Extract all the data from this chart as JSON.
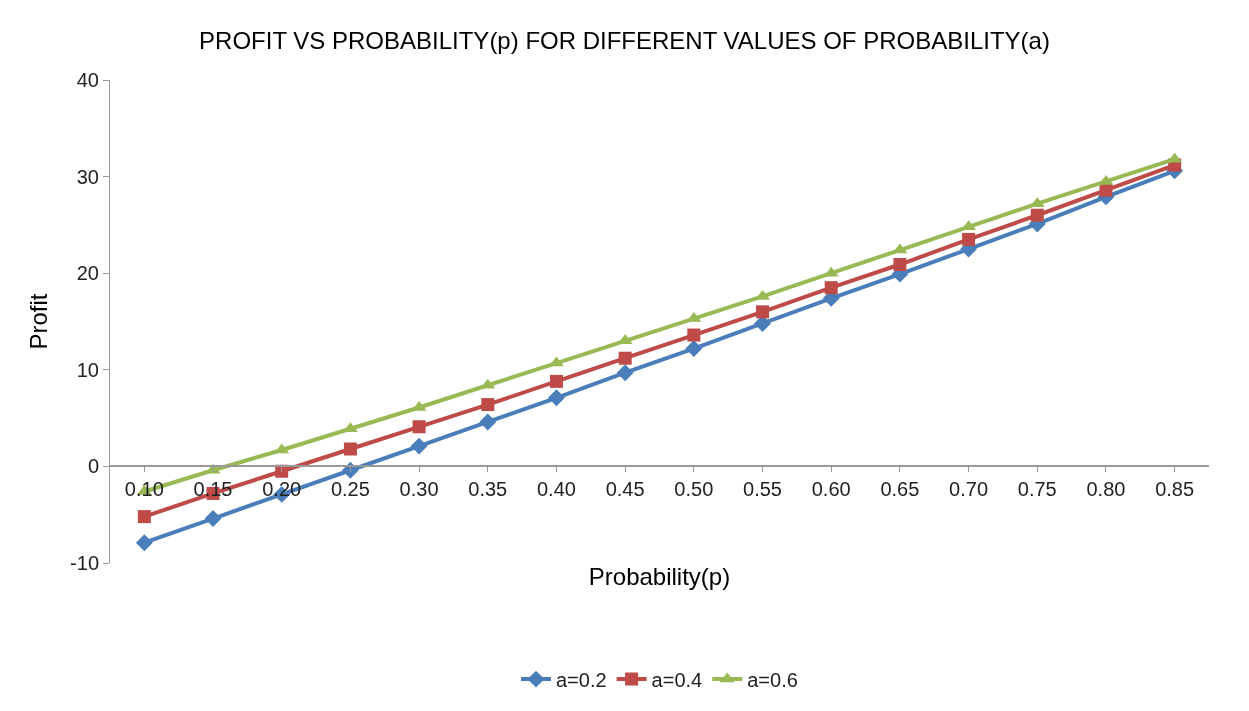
{
  "chart_data": {
    "type": "line",
    "title": "PROFIT VS PROBABILITY(p) FOR DIFFERENT VALUES OF PROBABILITY(a)",
    "xlabel": "Probability(p)",
    "ylabel": "Profit",
    "categories": [
      "0.10",
      "0.15",
      "0.20",
      "0.25",
      "0.30",
      "0.35",
      "0.40",
      "0.45",
      "0.50",
      "0.55",
      "0.60",
      "0.65",
      "0.70",
      "0.75",
      "0.80",
      "0.85"
    ],
    "series": [
      {
        "name": "a=0.2",
        "color": "#4a7ebb",
        "marker": "diamond",
        "values": [
          -7.9,
          -5.4,
          -2.9,
          -0.4,
          2.1,
          4.6,
          7.1,
          9.7,
          12.2,
          14.8,
          17.4,
          19.9,
          22.5,
          25.1,
          27.9,
          30.6
        ]
      },
      {
        "name": "a=0.4",
        "color": "#be4b48",
        "marker": "square",
        "values": [
          -5.2,
          -2.8,
          -0.5,
          1.8,
          4.1,
          6.4,
          8.8,
          11.2,
          13.6,
          16.0,
          18.5,
          20.9,
          23.5,
          26.0,
          28.6,
          31.2
        ]
      },
      {
        "name": "a=0.6",
        "color": "#98b954",
        "marker": "triangle",
        "values": [
          -2.6,
          -0.4,
          1.7,
          3.9,
          6.1,
          8.4,
          10.7,
          13.0,
          15.3,
          17.6,
          20.0,
          22.4,
          24.8,
          27.2,
          29.5,
          31.8
        ]
      }
    ],
    "ylim": [
      -10,
      40
    ],
    "yticks": [
      -10,
      0,
      10,
      20,
      30,
      40
    ],
    "legend": "bottom"
  }
}
